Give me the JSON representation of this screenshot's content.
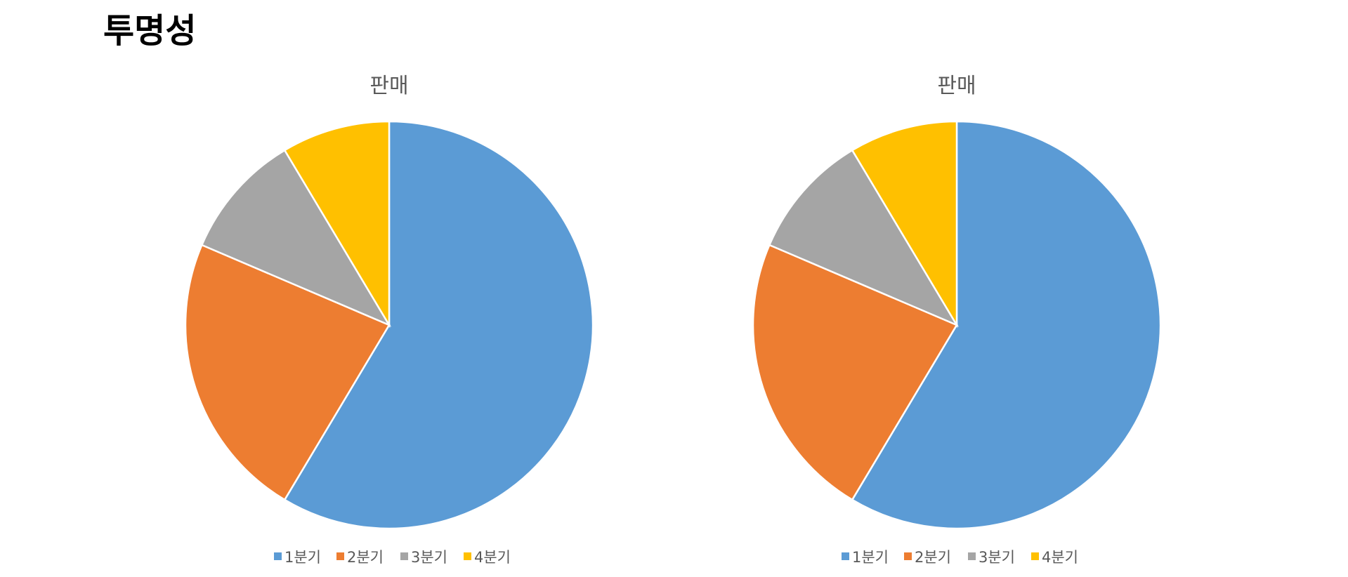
{
  "title": "투명성",
  "chart_data": [
    {
      "type": "pie",
      "title": "판매",
      "categories": [
        "1분기",
        "2분기",
        "3분기",
        "4분기"
      ],
      "values": [
        8.2,
        3.2,
        1.4,
        1.2
      ],
      "colors": [
        "#5b9bd5",
        "#ed7d31",
        "#a5a5a5",
        "#ffc000"
      ]
    },
    {
      "type": "pie",
      "title": "판매",
      "categories": [
        "1분기",
        "2분기",
        "3분기",
        "4분기"
      ],
      "values": [
        8.2,
        3.2,
        1.4,
        1.2
      ],
      "colors": [
        "#5b9bd5",
        "#ed7d31",
        "#a5a5a5",
        "#ffc000"
      ]
    }
  ]
}
